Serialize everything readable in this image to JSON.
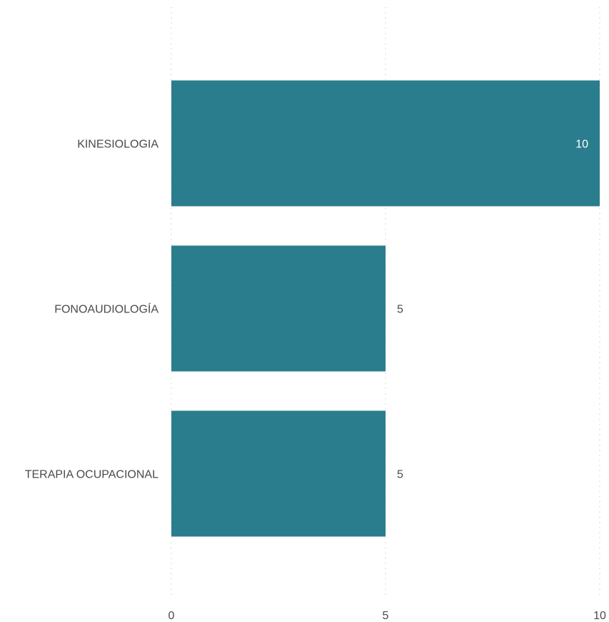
{
  "chart_data": {
    "type": "bar",
    "orientation": "horizontal",
    "categories": [
      "KINESIOLOGIA",
      "FONOAUDIOLOGÍA",
      "TERAPIA OCUPACIONAL"
    ],
    "values": [
      10,
      5,
      5
    ],
    "data_labels": [
      "10",
      "5",
      "5"
    ],
    "xlim": [
      0,
      10
    ],
    "xticks": [
      "0",
      "5",
      "10"
    ],
    "title": "",
    "xlabel": "",
    "ylabel": "",
    "grid": true,
    "legend": false,
    "colors": {
      "bar": "#2a7d8c",
      "label_inside": "#ffffff",
      "label_outside": "#4a4a4a",
      "text": "#4a4a4a",
      "grid": "#c8c8c8"
    }
  }
}
